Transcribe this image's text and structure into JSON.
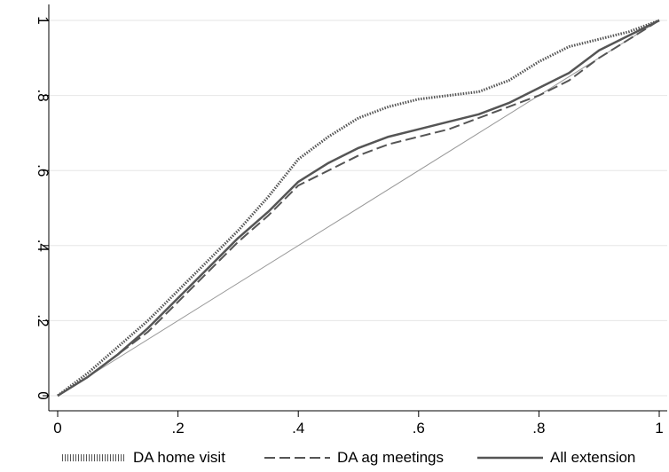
{
  "chart_data": {
    "type": "line",
    "title": "",
    "xlabel": "",
    "ylabel": "",
    "xlim": [
      0,
      1
    ],
    "ylim": [
      0,
      1
    ],
    "x_ticks": [
      {
        "value": 0,
        "label": "0"
      },
      {
        "value": 0.2,
        "label": ".2"
      },
      {
        "value": 0.4,
        "label": ".4"
      },
      {
        "value": 0.6,
        "label": ".6"
      },
      {
        "value": 0.8,
        "label": ".8"
      },
      {
        "value": 1,
        "label": "1"
      }
    ],
    "y_ticks": [
      {
        "value": 0,
        "label": "0"
      },
      {
        "value": 0.2,
        "label": ".2"
      },
      {
        "value": 0.4,
        "label": ".4"
      },
      {
        "value": 0.6,
        "label": ".6"
      },
      {
        "value": 0.8,
        "label": ".8"
      },
      {
        "value": 1,
        "label": "1"
      }
    ],
    "grid": "horizontal",
    "legend_position": "bottom",
    "colors": {
      "series_color": "#555555",
      "reference_color": "#999999",
      "grid_color": "#e6e6e6",
      "axis_color": "#000000"
    },
    "series": [
      {
        "name": "DA home visit",
        "style": "dotted",
        "x": [
          0,
          0.05,
          0.1,
          0.15,
          0.2,
          0.25,
          0.3,
          0.35,
          0.4,
          0.45,
          0.5,
          0.55,
          0.6,
          0.65,
          0.7,
          0.75,
          0.8,
          0.85,
          0.9,
          0.95,
          1
        ],
        "y": [
          0,
          0.06,
          0.13,
          0.2,
          0.28,
          0.36,
          0.44,
          0.53,
          0.63,
          0.69,
          0.74,
          0.77,
          0.79,
          0.8,
          0.81,
          0.84,
          0.89,
          0.93,
          0.95,
          0.97,
          1
        ]
      },
      {
        "name": "DA ag meetings",
        "style": "dashed",
        "x": [
          0,
          0.05,
          0.1,
          0.15,
          0.2,
          0.25,
          0.3,
          0.35,
          0.4,
          0.45,
          0.5,
          0.55,
          0.6,
          0.65,
          0.7,
          0.75,
          0.8,
          0.85,
          0.9,
          0.95,
          1
        ],
        "y": [
          0,
          0.05,
          0.11,
          0.17,
          0.25,
          0.33,
          0.41,
          0.48,
          0.56,
          0.6,
          0.64,
          0.67,
          0.69,
          0.71,
          0.74,
          0.77,
          0.8,
          0.84,
          0.9,
          0.95,
          1
        ]
      },
      {
        "name": "All extension",
        "style": "solid",
        "x": [
          0,
          0.05,
          0.1,
          0.15,
          0.2,
          0.25,
          0.3,
          0.35,
          0.4,
          0.45,
          0.5,
          0.55,
          0.6,
          0.65,
          0.7,
          0.75,
          0.8,
          0.85,
          0.9,
          0.95,
          1
        ],
        "y": [
          0,
          0.05,
          0.11,
          0.18,
          0.26,
          0.34,
          0.42,
          0.49,
          0.57,
          0.62,
          0.66,
          0.69,
          0.71,
          0.73,
          0.75,
          0.78,
          0.82,
          0.86,
          0.92,
          0.96,
          1
        ]
      }
    ],
    "reference_line": {
      "x": [
        0,
        1
      ],
      "y": [
        0,
        1
      ]
    }
  }
}
